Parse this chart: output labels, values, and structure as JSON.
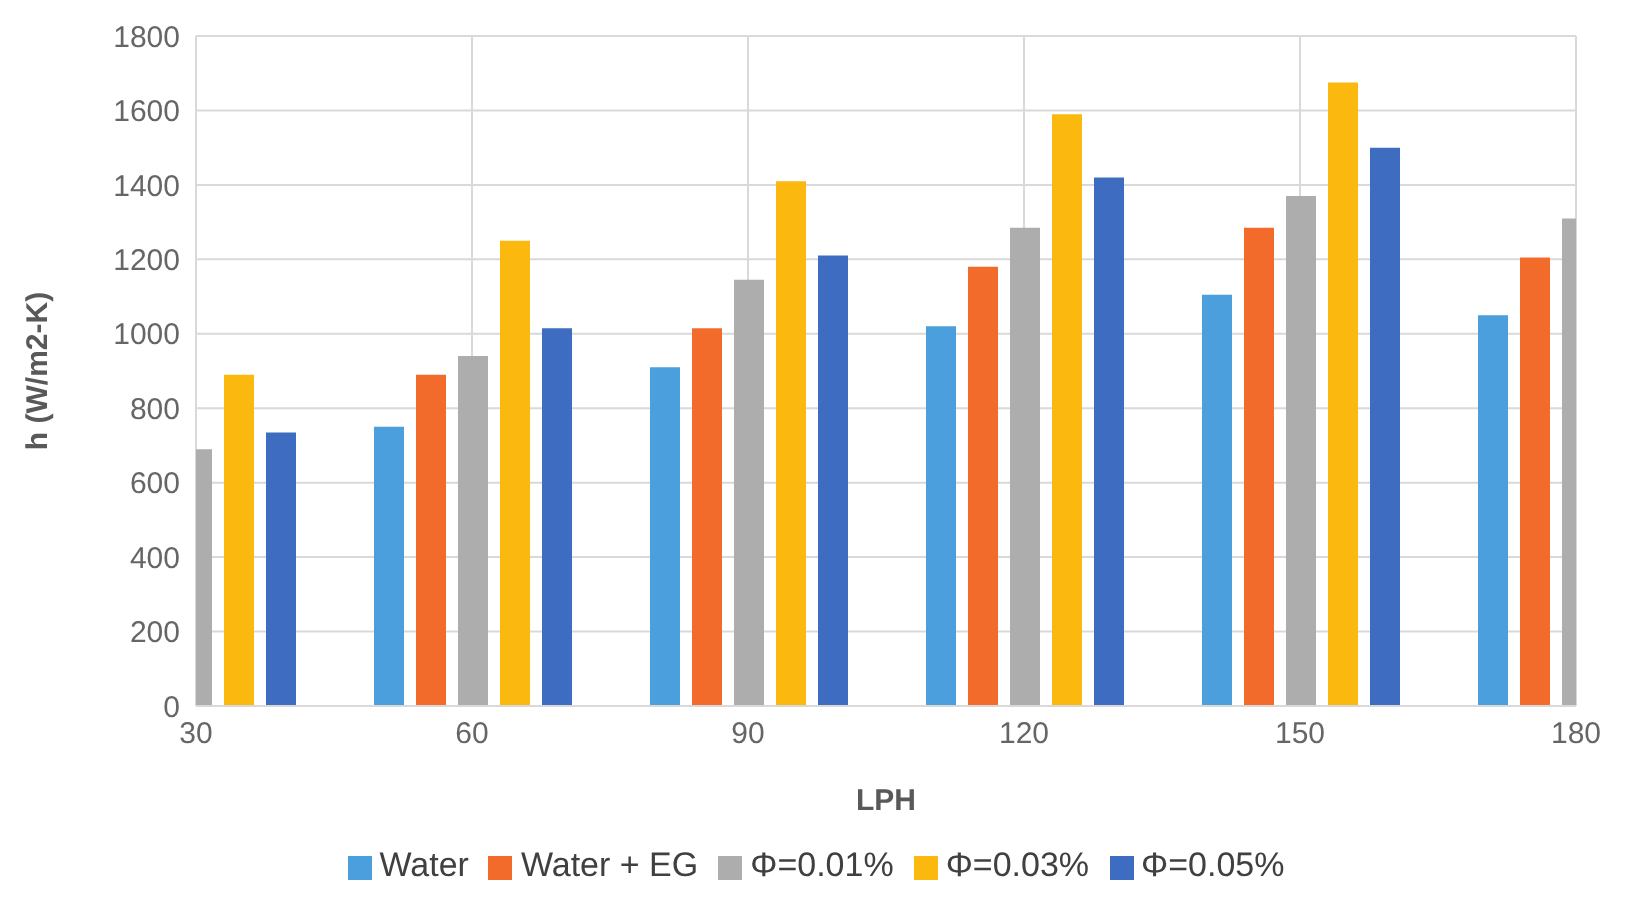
{
  "chart_data": {
    "type": "bar",
    "xlabel": "LPH",
    "ylabel": "h (W/m2-K)",
    "x": [
      30,
      60,
      90,
      120,
      150,
      180
    ],
    "series": [
      {
        "name": "Water",
        "color": "#4a9fdc",
        "values": [
          null,
          750,
          910,
          1020,
          1105,
          1050
        ]
      },
      {
        "name": "Water + EG",
        "color": "#f26b2b",
        "values": [
          null,
          890,
          1015,
          1180,
          1285,
          1205
        ]
      },
      {
        "name": "Φ=0.01%",
        "color": "#adadad",
        "values": [
          690,
          940,
          1145,
          1285,
          1370,
          1310
        ]
      },
      {
        "name": "Φ=0.03%",
        "color": "#fbb80f",
        "values": [
          890,
          1250,
          1410,
          1590,
          1675,
          null
        ]
      },
      {
        "name": "Φ=0.05%",
        "color": "#3e6cc0",
        "values": [
          735,
          1015,
          1210,
          1420,
          1500,
          null
        ]
      }
    ],
    "xlim": [
      30,
      180
    ],
    "xticks": [
      30,
      60,
      90,
      120,
      150,
      180
    ],
    "ylim": [
      0,
      1800
    ],
    "yticks": [
      0,
      200,
      400,
      600,
      800,
      1000,
      1200,
      1400,
      1600,
      1800
    ],
    "grid": true,
    "legend": "bottom"
  }
}
